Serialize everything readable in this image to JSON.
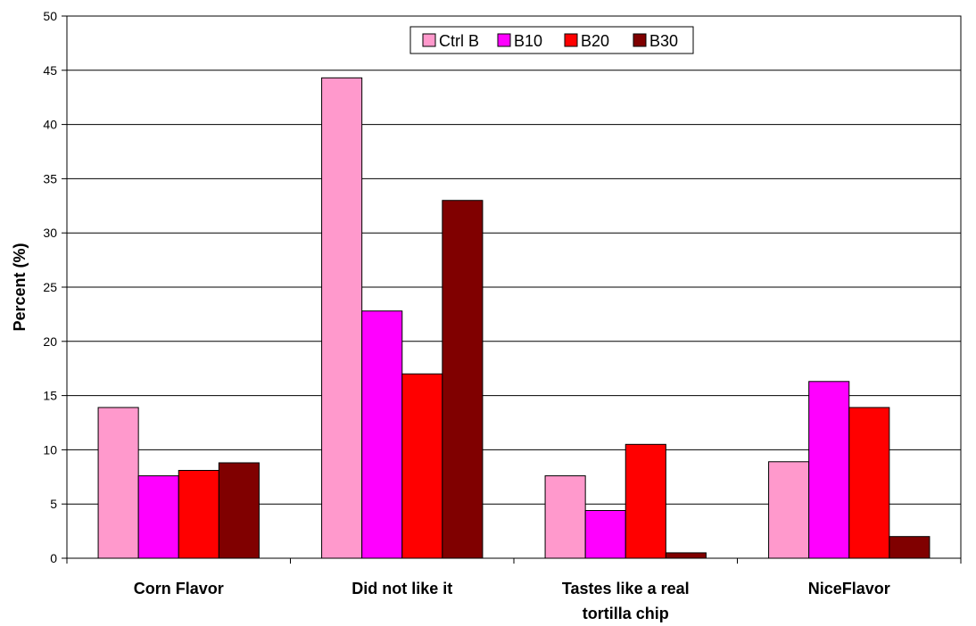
{
  "chart_data": {
    "type": "bar",
    "title": "",
    "xlabel": "",
    "ylabel": "Percent (%)",
    "ylim": [
      0,
      50
    ],
    "yticks": [
      0,
      5,
      10,
      15,
      20,
      25,
      30,
      35,
      40,
      45,
      50
    ],
    "grid": true,
    "legend_position": "top-center",
    "categories": [
      [
        "Corn Flavor"
      ],
      [
        "Did not like it"
      ],
      [
        "Tastes like a real",
        "tortilla chip"
      ],
      [
        "NiceFlavor"
      ]
    ],
    "series": [
      {
        "name": "Ctrl B",
        "color": "#ff99cc",
        "values": [
          13.9,
          44.3,
          7.6,
          8.9
        ]
      },
      {
        "name": "B10",
        "color": "#ff00ff",
        "values": [
          7.6,
          22.8,
          4.4,
          16.3
        ]
      },
      {
        "name": "B20",
        "color": "#ff0000",
        "values": [
          8.1,
          17.0,
          10.5,
          13.9
        ]
      },
      {
        "name": "B30",
        "color": "#800000",
        "values": [
          8.8,
          33.0,
          0.5,
          2.0
        ]
      }
    ]
  }
}
